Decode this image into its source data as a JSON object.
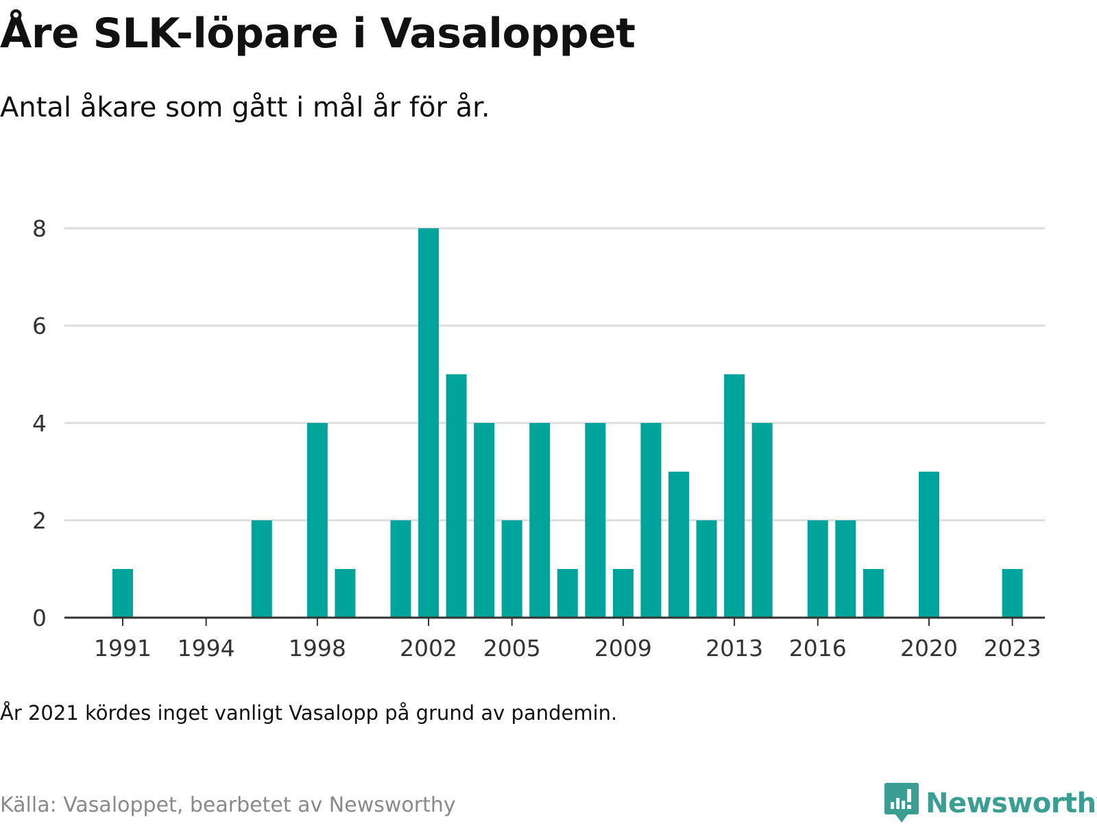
{
  "header": {
    "title": "Åre SLK-löpare i Vasaloppet",
    "subtitle": "Antal åkare som gått i mål år för år."
  },
  "footer": {
    "note": "År 2021 kördes inget vanligt Vasalopp på grund av pandemin.",
    "source": "Källa: Vasaloppet, bearbetet av Newsworthy",
    "brand": "Newsworthy",
    "brand_icon": "newsworthy-logo-icon"
  },
  "colors": {
    "bar": "#00a49a",
    "grid": "#dcdcdc",
    "axis": "#333333",
    "brand": "#3a9e93"
  },
  "chart_data": {
    "type": "bar",
    "x": [
      1991,
      1992,
      1993,
      1994,
      1995,
      1996,
      1997,
      1998,
      1999,
      2000,
      2001,
      2002,
      2003,
      2004,
      2005,
      2006,
      2007,
      2008,
      2009,
      2010,
      2011,
      2012,
      2013,
      2014,
      2015,
      2016,
      2017,
      2018,
      2019,
      2020,
      2021,
      2022,
      2023
    ],
    "values": [
      1,
      0,
      0,
      0,
      0,
      2,
      0,
      4,
      1,
      0,
      2,
      8,
      5,
      4,
      2,
      4,
      1,
      4,
      1,
      4,
      3,
      2,
      5,
      4,
      0,
      2,
      2,
      1,
      0,
      3,
      0,
      0,
      1
    ],
    "x_ticks": [
      "1991",
      "1994",
      "1998",
      "2002",
      "2005",
      "2009",
      "2013",
      "2016",
      "2020",
      "2023"
    ],
    "y_ticks": [
      "0",
      "2",
      "4",
      "6",
      "8"
    ],
    "ylim": [
      0,
      8
    ],
    "grid": true,
    "xlabel": "",
    "ylabel": ""
  }
}
